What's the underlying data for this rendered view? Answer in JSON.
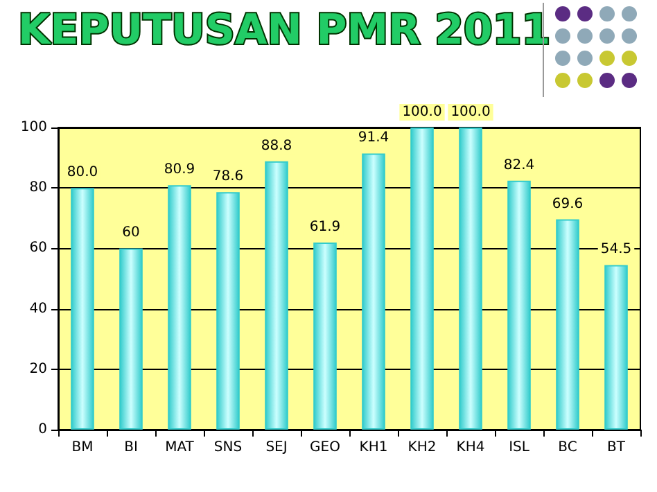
{
  "chart_data": {
    "type": "bar",
    "title": "KEPUTUSAN PMR 2011",
    "categories": [
      "BM",
      "BI",
      "MAT",
      "SNS",
      "SEJ",
      "GEO",
      "KH1",
      "KH2",
      "KH4",
      "ISL",
      "BC",
      "BT"
    ],
    "values": [
      80.0,
      60,
      80.9,
      78.6,
      88.8,
      61.9,
      91.4,
      100.0,
      100.0,
      82.4,
      69.6,
      54.5
    ],
    "value_labels": [
      "80.0",
      "60",
      "80.9",
      "78.6",
      "88.8",
      "61.9",
      "91.4",
      "100.0",
      "100.0",
      "82.4",
      "69.6",
      "54.5"
    ],
    "color": "#33cccc",
    "ylim": [
      0,
      100
    ],
    "yticks": [
      0,
      20,
      40,
      60,
      80,
      100
    ],
    "grid": "y"
  }
}
